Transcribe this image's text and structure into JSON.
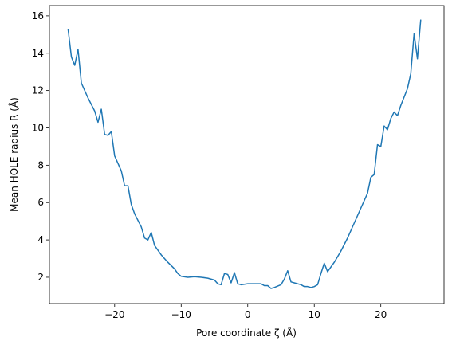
{
  "chart_data": {
    "type": "line",
    "xlabel": "Pore coordinate ζ (Å)",
    "ylabel": "Mean HOLE radius R (Å)",
    "x": [
      -27,
      -26.5,
      -26,
      -25.5,
      -25,
      -24,
      -23,
      -22.5,
      -22,
      -21.5,
      -21,
      -20.5,
      -20,
      -19,
      -18.5,
      -18,
      -17.5,
      -17,
      -16,
      -15.5,
      -15,
      -14.5,
      -14,
      -13,
      -12,
      -11,
      -10.5,
      -10,
      -9,
      -8,
      -7,
      -6,
      -5,
      -4.5,
      -4,
      -3.5,
      -3,
      -2.5,
      -2,
      -1.5,
      -1,
      0,
      1,
      2,
      2.5,
      3,
      3.5,
      4,
      5,
      5.5,
      6,
      6.5,
      7,
      8,
      8.5,
      9,
      9.5,
      10,
      10.5,
      11,
      11.5,
      12,
      13,
      14,
      15,
      16,
      17,
      18,
      18.5,
      19,
      19.5,
      20,
      20.5,
      21,
      21.5,
      22,
      22.5,
      23,
      24,
      24.5,
      25,
      25.5,
      26
    ],
    "series": [
      {
        "color": "#1f77b4",
        "values": [
          15.3,
          13.8,
          13.35,
          14.2,
          12.4,
          11.6,
          10.9,
          10.3,
          11.0,
          9.65,
          9.6,
          9.8,
          8.5,
          7.7,
          6.9,
          6.9,
          5.9,
          5.4,
          4.7,
          4.1,
          4.0,
          4.4,
          3.7,
          3.2,
          2.8,
          2.45,
          2.2,
          2.05,
          2.0,
          2.03,
          2.0,
          1.95,
          1.85,
          1.65,
          1.6,
          2.2,
          2.15,
          1.7,
          2.25,
          1.65,
          1.6,
          1.65,
          1.65,
          1.65,
          1.55,
          1.55,
          1.4,
          1.45,
          1.6,
          1.9,
          2.35,
          1.75,
          1.7,
          1.6,
          1.5,
          1.5,
          1.45,
          1.5,
          1.6,
          2.2,
          2.75,
          2.3,
          2.8,
          3.4,
          4.1,
          4.9,
          5.7,
          6.5,
          7.35,
          7.5,
          9.1,
          9.0,
          10.1,
          9.9,
          10.5,
          10.85,
          10.65,
          11.2,
          12.1,
          12.9,
          15.05,
          13.7,
          15.8
        ]
      }
    ],
    "xlim": [
      -29.8,
      29.5
    ],
    "ylim": [
      0.59,
      16.55
    ],
    "xticks": [
      {
        "value": -20,
        "label": "−20"
      },
      {
        "value": -10,
        "label": "−10"
      },
      0,
      10,
      20
    ],
    "yticks": [
      2,
      4,
      6,
      8,
      10,
      12,
      14,
      16
    ]
  }
}
